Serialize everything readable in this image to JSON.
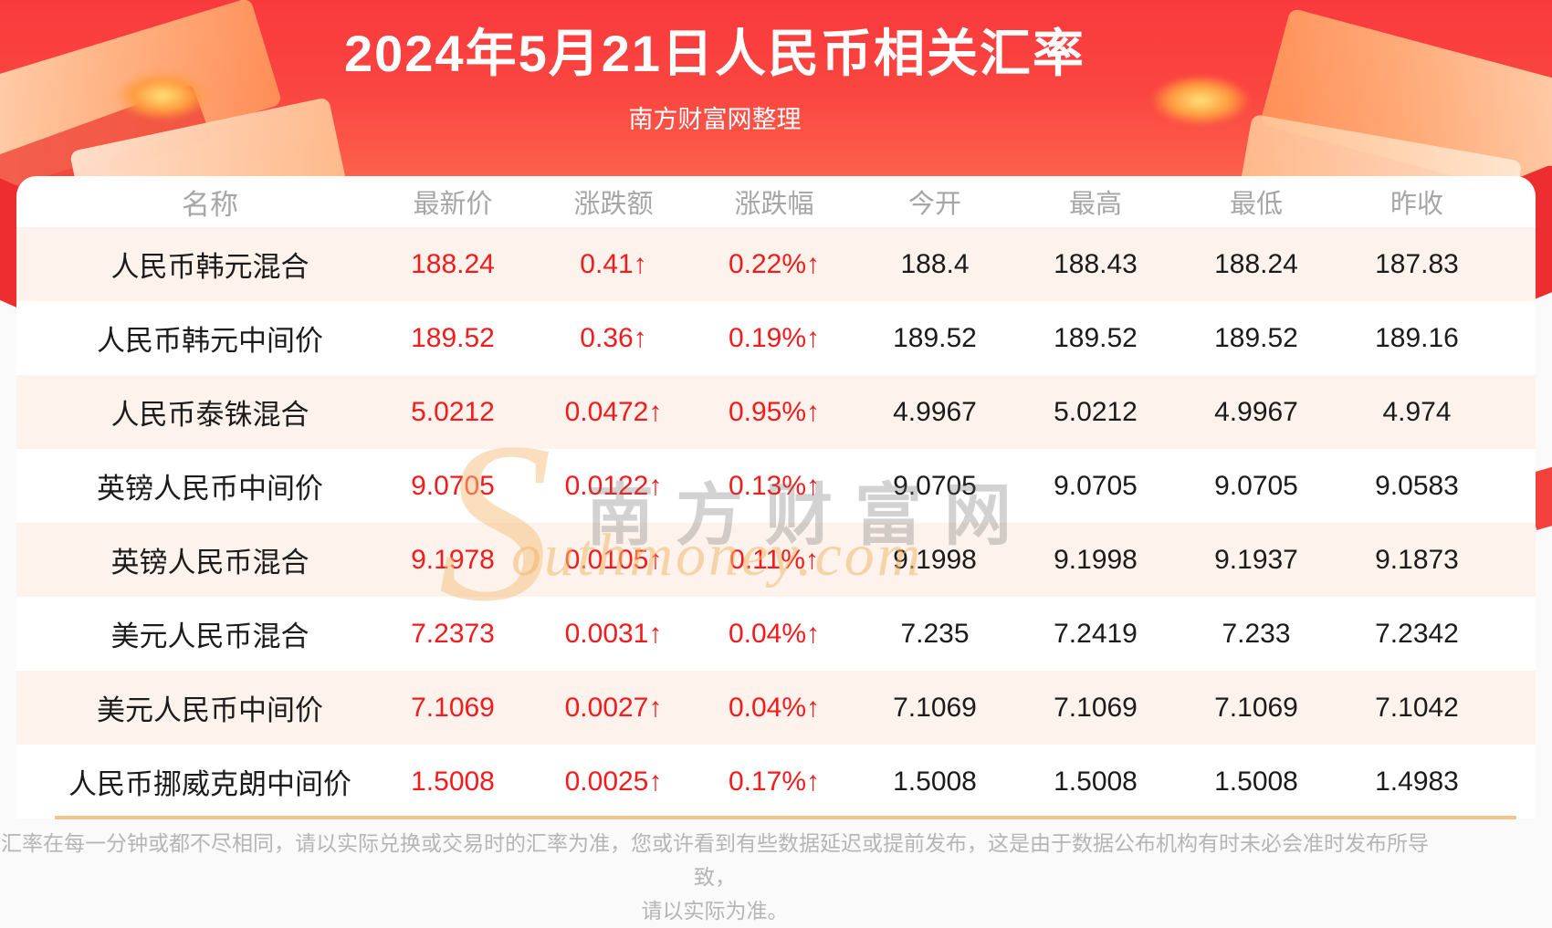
{
  "header": {
    "title": "2024年5月21日人民币相关汇率",
    "subtitle": "南方财富网整理"
  },
  "table": {
    "columns": [
      "名称",
      "最新价",
      "涨跌额",
      "涨跌幅",
      "今开",
      "最高",
      "最低",
      "昨收"
    ],
    "rows": [
      {
        "name": "人民币韩元混合",
        "latest": "188.24",
        "change": "0.41↑",
        "change_pct": "0.22%↑",
        "open": "188.4",
        "high": "188.43",
        "low": "188.24",
        "prev_close": "187.83"
      },
      {
        "name": "人民币韩元中间价",
        "latest": "189.52",
        "change": "0.36↑",
        "change_pct": "0.19%↑",
        "open": "189.52",
        "high": "189.52",
        "low": "189.52",
        "prev_close": "189.16"
      },
      {
        "name": "人民币泰铢混合",
        "latest": "5.0212",
        "change": "0.0472↑",
        "change_pct": "0.95%↑",
        "open": "4.9967",
        "high": "5.0212",
        "low": "4.9967",
        "prev_close": "4.974"
      },
      {
        "name": "英镑人民币中间价",
        "latest": "9.0705",
        "change": "0.0122↑",
        "change_pct": "0.13%↑",
        "open": "9.0705",
        "high": "9.0705",
        "low": "9.0705",
        "prev_close": "9.0583"
      },
      {
        "name": "英镑人民币混合",
        "latest": "9.1978",
        "change": "0.0105↑",
        "change_pct": "0.11%↑",
        "open": "9.1998",
        "high": "9.1998",
        "low": "9.1937",
        "prev_close": "9.1873"
      },
      {
        "name": "美元人民币混合",
        "latest": "7.2373",
        "change": "0.0031↑",
        "change_pct": "0.04%↑",
        "open": "7.235",
        "high": "7.2419",
        "low": "7.233",
        "prev_close": "7.2342"
      },
      {
        "name": "美元人民币中间价",
        "latest": "7.1069",
        "change": "0.0027↑",
        "change_pct": "0.04%↑",
        "open": "7.1069",
        "high": "7.1069",
        "low": "7.1069",
        "prev_close": "7.1042"
      },
      {
        "name": "人民币挪威克朗中间价",
        "latest": "1.5008",
        "change": "0.0025↑",
        "change_pct": "0.17%↑",
        "open": "1.5008",
        "high": "1.5008",
        "low": "1.5008",
        "prev_close": "1.4983"
      }
    ]
  },
  "watermark": {
    "latin_initial": "S",
    "cjk": "南方财富网",
    "latin_rest": "outhmoney.com"
  },
  "footer": {
    "line1": "汇率在每一分钟或都不尽相同，请以实际兑换或交易时的汇率为准，您或许看到有些数据延迟或提前发布，这是由于数据公布机构有时未必会准时发布所导致，",
    "line2": "请以实际为准。"
  },
  "colors": {
    "banner_red_top": "#f93a3d",
    "banner_red_bottom": "#fd7457",
    "value_red": "#f31b1b",
    "value_black": "#1b1b1b",
    "header_gray": "#a6a6a6",
    "row_alt_bg": "#fdf3ec",
    "divider_orange": "#f5c48e",
    "watermark_orange": "#f2b96d",
    "footer_gray": "#b5b5b5"
  }
}
